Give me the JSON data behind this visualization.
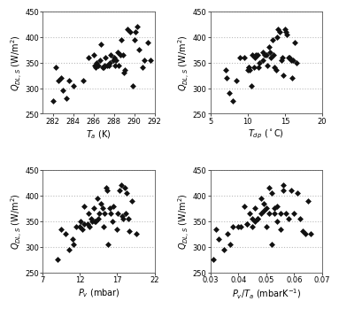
{
  "plot1": {
    "xlabel": "$T_a$ (K)",
    "ylabel": "$Q_{DL,S}$ (W/m$^2$)",
    "xlim": [
      281,
      292
    ],
    "ylim": [
      250,
      450
    ],
    "xticks": [
      282,
      284,
      286,
      288,
      290,
      292
    ],
    "yticks": [
      250,
      300,
      350,
      400,
      450
    ],
    "x": [
      282.0,
      282.3,
      282.5,
      282.8,
      283.0,
      283.3,
      283.6,
      284.0,
      285.0,
      285.5,
      286.0,
      286.1,
      286.2,
      286.3,
      286.5,
      286.6,
      286.7,
      286.9,
      287.0,
      287.1,
      287.2,
      287.3,
      287.5,
      287.6,
      287.7,
      287.9,
      288.0,
      288.1,
      288.2,
      288.4,
      288.5,
      288.6,
      288.7,
      288.9,
      289.0,
      289.1,
      289.3,
      289.6,
      289.9,
      290.0,
      290.1,
      290.3,
      290.5,
      290.8,
      291.0,
      291.3,
      291.6
    ],
    "y": [
      275,
      340,
      315,
      320,
      295,
      280,
      315,
      305,
      315,
      360,
      365,
      345,
      340,
      350,
      345,
      355,
      385,
      340,
      340,
      345,
      360,
      345,
      345,
      350,
      365,
      355,
      360,
      345,
      355,
      370,
      345,
      365,
      395,
      365,
      330,
      335,
      415,
      410,
      305,
      395,
      410,
      420,
      375,
      340,
      355,
      390,
      355
    ]
  },
  "plot2": {
    "xlabel": "$T_{dp}$ ($^\\circ$C)",
    "ylabel": "$Q_{DL,S}$ (W/m$^2$)",
    "xlim": [
      5,
      20
    ],
    "ylim": [
      250,
      450
    ],
    "xticks": [
      5,
      10,
      15,
      20
    ],
    "yticks": [
      250,
      300,
      350,
      400,
      450
    ],
    "x": [
      7.0,
      7.2,
      7.5,
      8.0,
      8.5,
      9.0,
      9.5,
      10.0,
      10.1,
      10.2,
      10.3,
      10.5,
      10.6,
      10.8,
      11.0,
      11.1,
      11.3,
      11.5,
      11.6,
      12.0,
      12.1,
      12.3,
      12.5,
      12.6,
      12.9,
      13.0,
      13.1,
      13.3,
      13.5,
      13.6,
      13.8,
      14.0,
      14.1,
      14.3,
      14.5,
      14.6,
      14.8,
      15.0,
      15.1,
      15.3,
      15.5,
      15.6,
      15.8,
      16.0,
      16.1,
      16.3,
      16.6
    ],
    "y": [
      335,
      320,
      290,
      275,
      315,
      360,
      360,
      335,
      340,
      340,
      335,
      305,
      365,
      340,
      360,
      365,
      365,
      340,
      350,
      355,
      370,
      365,
      365,
      345,
      380,
      370,
      360,
      395,
      365,
      340,
      335,
      400,
      415,
      410,
      355,
      360,
      325,
      415,
      410,
      405,
      360,
      360,
      355,
      320,
      355,
      390,
      350
    ]
  },
  "plot3": {
    "xlabel": "$P_v$ (mbar)",
    "ylabel": "$Q_{DL,S}$ (W/m$^2$)",
    "xlim": [
      7,
      22
    ],
    "ylim": [
      250,
      450
    ],
    "xticks": [
      7,
      12,
      17,
      22
    ],
    "yticks": [
      250,
      300,
      350,
      400,
      450
    ],
    "x": [
      9.0,
      9.5,
      10.0,
      10.5,
      11.0,
      11.1,
      11.5,
      12.0,
      12.1,
      12.3,
      12.5,
      12.6,
      13.0,
      13.1,
      13.2,
      13.5,
      13.6,
      13.8,
      14.0,
      14.1,
      14.3,
      14.5,
      14.6,
      14.8,
      15.0,
      15.1,
      15.3,
      15.5,
      15.6,
      15.8,
      16.0,
      16.1,
      16.3,
      16.5,
      17.0,
      17.1,
      17.3,
      17.5,
      17.6,
      17.8,
      18.0,
      18.1,
      18.3,
      18.5,
      18.6,
      19.0,
      19.5
    ],
    "y": [
      275,
      335,
      325,
      295,
      315,
      305,
      340,
      340,
      350,
      335,
      380,
      345,
      345,
      365,
      340,
      355,
      350,
      375,
      350,
      350,
      395,
      355,
      365,
      385,
      375,
      340,
      365,
      415,
      410,
      305,
      375,
      365,
      350,
      380,
      335,
      365,
      410,
      420,
      360,
      355,
      415,
      365,
      405,
      355,
      330,
      390,
      325
    ]
  },
  "plot4": {
    "xlabel": "$P_v/T_a$ (mbarK$^{-1}$)",
    "ylabel": "$Q_{DL,S}$ (W/m$^2$)",
    "xlim": [
      0.03,
      0.07
    ],
    "ylim": [
      250,
      450
    ],
    "xticks": [
      0.03,
      0.04,
      0.05,
      0.06,
      0.07
    ],
    "xtick_labels": [
      "0.03",
      "0.04",
      "0.05",
      "0.06",
      "0.07"
    ],
    "yticks": [
      250,
      300,
      350,
      400,
      450
    ],
    "x": [
      0.031,
      0.032,
      0.033,
      0.035,
      0.036,
      0.037,
      0.038,
      0.04,
      0.041,
      0.042,
      0.043,
      0.043,
      0.044,
      0.045,
      0.045,
      0.046,
      0.046,
      0.047,
      0.047,
      0.048,
      0.048,
      0.049,
      0.049,
      0.05,
      0.05,
      0.051,
      0.051,
      0.052,
      0.052,
      0.053,
      0.053,
      0.054,
      0.054,
      0.055,
      0.055,
      0.056,
      0.056,
      0.057,
      0.058,
      0.059,
      0.06,
      0.061,
      0.062,
      0.063,
      0.064,
      0.065,
      0.066
    ],
    "y": [
      275,
      335,
      315,
      295,
      325,
      305,
      340,
      340,
      340,
      380,
      345,
      345,
      365,
      340,
      355,
      350,
      375,
      355,
      355,
      395,
      365,
      370,
      385,
      375,
      340,
      365,
      415,
      405,
      305,
      375,
      365,
      350,
      380,
      335,
      365,
      410,
      420,
      365,
      355,
      410,
      365,
      405,
      355,
      330,
      325,
      390,
      325
    ]
  },
  "marker": "D",
  "markersize": 3.5,
  "color": "#111111",
  "grid_color": "#bbbbbb",
  "grid_linestyle": ":",
  "grid_linewidth": 0.8,
  "bg_color": "#ffffff",
  "font_size_label": 7,
  "font_size_tick": 6
}
